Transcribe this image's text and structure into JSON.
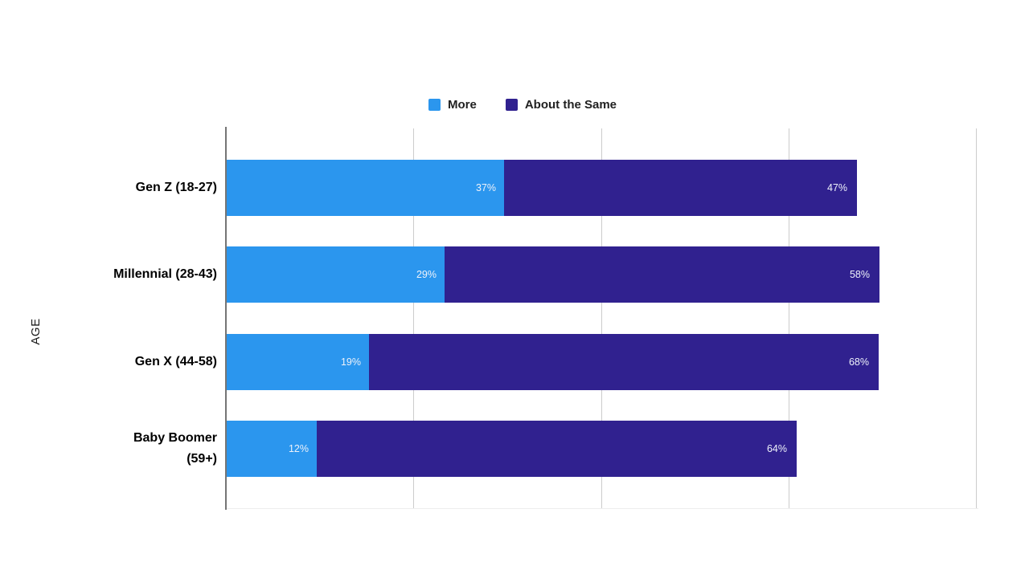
{
  "chart_data": {
    "type": "bar",
    "orientation": "horizontal",
    "stacked": true,
    "title": "",
    "xlabel": "",
    "ylabel": "AGE",
    "categories": [
      "Gen Z (18-27)",
      "Millennial (28-43)",
      "Gen X (44-58)",
      "Baby Boomer\n(59+)"
    ],
    "series": [
      {
        "name": "More",
        "color": "#2B96EE",
        "values": [
          37,
          29,
          19,
          12
        ]
      },
      {
        "name": "About the Same",
        "color": "#30218F",
        "values": [
          47,
          58,
          68,
          64
        ]
      }
    ],
    "value_suffix": "%",
    "xlim": [
      0,
      100
    ],
    "x_gridlines_percent": [
      25,
      50,
      75,
      100
    ],
    "x_tick_labels_visible": false,
    "legend_position": "top",
    "grid": "vertical"
  },
  "style": {
    "background": "#ffffff",
    "axis_line_color": "#757575",
    "gridline_color": "#cccccc",
    "category_label_color": "#000000",
    "value_label_color": "#eef2fa",
    "legend_text_color": "#212121"
  }
}
